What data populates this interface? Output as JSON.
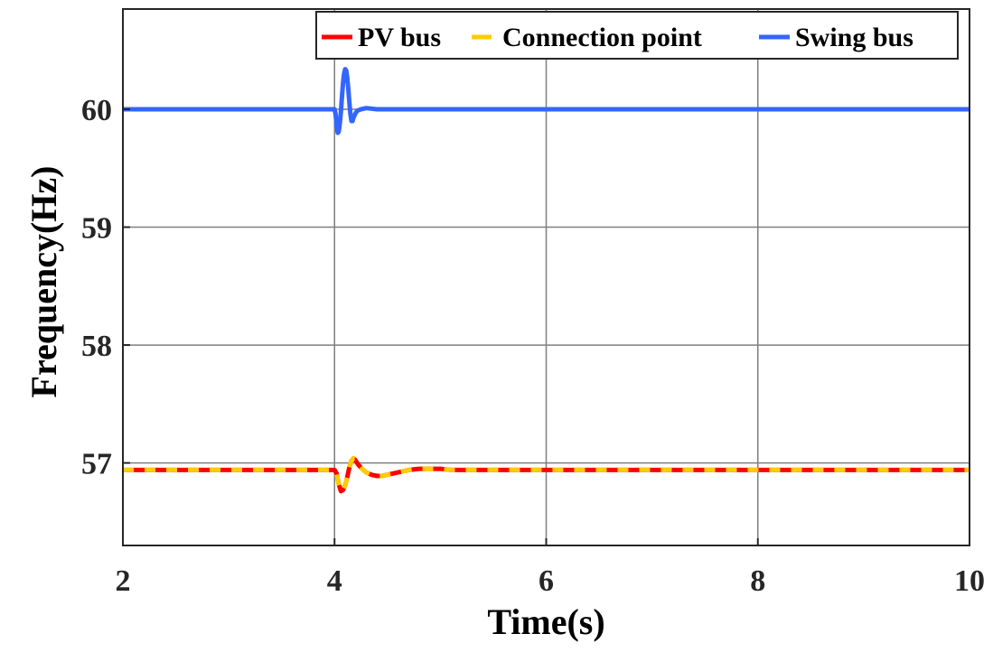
{
  "chart_data": {
    "type": "line",
    "title": "",
    "xlabel": "Time(s)",
    "ylabel": "Frequency(Hz)",
    "xlim": [
      2,
      10
    ],
    "ylim": [
      56.3,
      60.85
    ],
    "grid": true,
    "legend_position": "top-right",
    "legend_orientation": "horizontal",
    "x_ticks": [
      "2",
      "4",
      "6",
      "8",
      "10"
    ],
    "y_ticks": [
      "57",
      "58",
      "59",
      "60"
    ],
    "series": [
      {
        "name": "PV bus",
        "color": "#ff0000",
        "style": "solid",
        "x": [
          2,
          4.0,
          4.02,
          4.04,
          4.06,
          4.08,
          4.1,
          4.12,
          4.14,
          4.16,
          4.18,
          4.2,
          4.22,
          4.26,
          4.3,
          4.35,
          4.4,
          4.45,
          4.5,
          4.6,
          4.7,
          4.8,
          4.9,
          5.0,
          5.1,
          5.2,
          5.4,
          10
        ],
        "y": [
          56.94,
          56.94,
          56.91,
          56.82,
          56.76,
          56.77,
          56.81,
          56.88,
          56.96,
          57.02,
          57.04,
          57.02,
          56.99,
          56.95,
          56.92,
          56.9,
          56.89,
          56.89,
          56.9,
          56.92,
          56.94,
          56.95,
          56.95,
          56.95,
          56.94,
          56.94,
          56.94,
          56.94
        ]
      },
      {
        "name": "Connection point",
        "color": "#ffcc00",
        "style": "dashed",
        "x": [
          2,
          4.0,
          4.02,
          4.04,
          4.06,
          4.08,
          4.1,
          4.12,
          4.14,
          4.16,
          4.18,
          4.2,
          4.22,
          4.26,
          4.3,
          4.35,
          4.4,
          4.45,
          4.5,
          4.6,
          4.7,
          4.8,
          4.9,
          5.0,
          5.1,
          5.2,
          5.4,
          10
        ],
        "y": [
          56.94,
          56.94,
          56.91,
          56.82,
          56.76,
          56.77,
          56.81,
          56.88,
          56.96,
          57.02,
          57.04,
          57.02,
          56.99,
          56.95,
          56.92,
          56.9,
          56.89,
          56.89,
          56.9,
          56.92,
          56.94,
          56.95,
          56.95,
          56.95,
          56.94,
          56.94,
          56.94,
          56.94
        ]
      },
      {
        "name": "Swing bus",
        "color": "#3366ff",
        "style": "solid",
        "x": [
          2,
          4.0,
          4.01,
          4.02,
          4.03,
          4.04,
          4.05,
          4.06,
          4.07,
          4.08,
          4.09,
          4.1,
          4.11,
          4.12,
          4.13,
          4.14,
          4.15,
          4.16,
          4.17,
          4.18,
          4.2,
          4.22,
          4.25,
          4.3,
          4.4,
          10
        ],
        "y": [
          60.0,
          60.0,
          59.96,
          59.86,
          59.8,
          59.81,
          59.88,
          59.98,
          60.1,
          60.22,
          60.3,
          60.34,
          60.33,
          60.27,
          60.17,
          60.06,
          59.96,
          59.9,
          59.9,
          59.93,
          59.97,
          59.99,
          60.0,
          60.01,
          60.0,
          60.0
        ]
      }
    ]
  }
}
